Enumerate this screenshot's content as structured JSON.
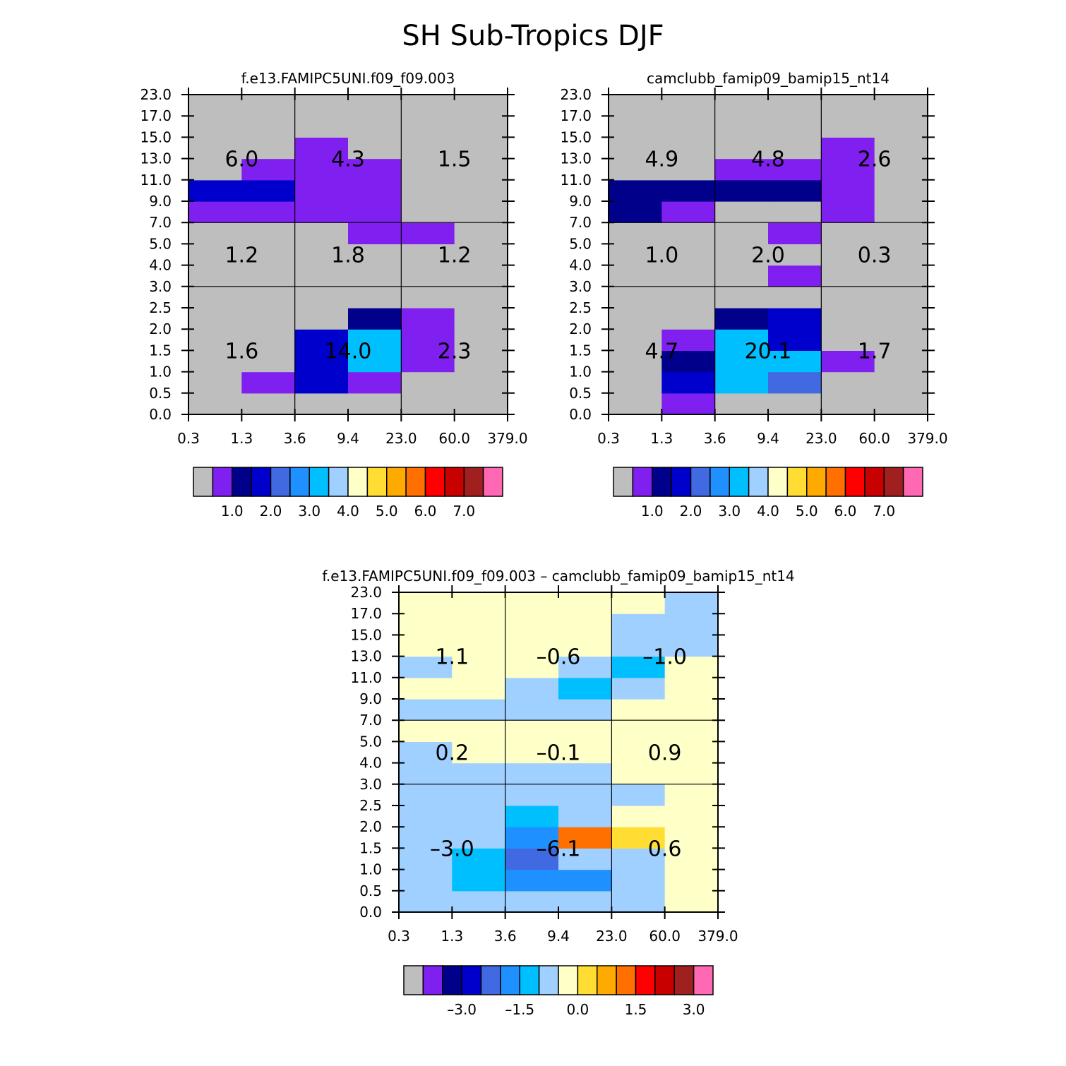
{
  "title": "SH Sub-Tropics DJF",
  "colors": {
    "palette": [
      "#bebebe",
      "#8020f0",
      "#00008b",
      "#0000cd",
      "#4169e1",
      "#1e90ff",
      "#00bfff",
      "#a0d0ff",
      "#ffffc8",
      "#ffdd33",
      "#ffaa00",
      "#ff7000",
      "#ff0000",
      "#c80000",
      "#a02020",
      "#ff69b4"
    ]
  },
  "chart_data": [
    {
      "type": "heatmap",
      "title": "f.e13.FAMIPC5UNI.f09_f09.003",
      "x_ticks": [
        "0.3",
        "1.3",
        "3.6",
        "9.4",
        "23.0",
        "60.0",
        "379.0"
      ],
      "y_ticks": [
        "0.0",
        "0.5",
        "1.0",
        "1.5",
        "2.0",
        "2.5",
        "3.0",
        "4.0",
        "5.0",
        "7.0",
        "9.0",
        "11.0",
        "13.0",
        "15.0",
        "17.0",
        "23.0"
      ],
      "x_label": "",
      "y_label": "",
      "cells_note": "grid[row][col]: row 0 = y bin 0.0-0.5, col 0 = x bin 0.3-1.3; values are palette indices",
      "grid": [
        [
          0,
          0,
          0,
          0,
          0,
          0
        ],
        [
          0,
          1,
          3,
          1,
          0,
          0
        ],
        [
          0,
          0,
          3,
          6,
          1,
          0
        ],
        [
          0,
          0,
          3,
          6,
          1,
          0
        ],
        [
          0,
          0,
          0,
          2,
          1,
          0
        ],
        [
          0,
          0,
          0,
          0,
          0,
          0
        ],
        [
          0,
          0,
          0,
          0,
          0,
          0
        ],
        [
          0,
          0,
          0,
          0,
          0,
          0
        ],
        [
          0,
          0,
          0,
          1,
          1,
          0
        ],
        [
          1,
          1,
          1,
          1,
          0,
          0
        ],
        [
          3,
          3,
          1,
          1,
          0,
          0
        ],
        [
          0,
          1,
          1,
          1,
          0,
          0
        ],
        [
          0,
          0,
          1,
          0,
          0,
          0
        ],
        [
          0,
          0,
          0,
          0,
          0,
          0
        ],
        [
          0,
          0,
          0,
          0,
          0,
          0
        ]
      ],
      "region_labels": [
        {
          "col": 0,
          "row": 2,
          "text": "6.0"
        },
        {
          "col": 1,
          "row": 2,
          "text": "4.3"
        },
        {
          "col": 2,
          "row": 2,
          "text": "1.5"
        },
        {
          "col": 0,
          "row": 1,
          "text": "1.2"
        },
        {
          "col": 1,
          "row": 1,
          "text": "1.8"
        },
        {
          "col": 2,
          "row": 1,
          "text": "1.2"
        },
        {
          "col": 0,
          "row": 0,
          "text": "1.6"
        },
        {
          "col": 1,
          "row": 0,
          "text": "14.0"
        },
        {
          "col": 2,
          "row": 0,
          "text": "2.3"
        }
      ],
      "colorbar": {
        "colors": [
          0,
          1,
          2,
          3,
          4,
          5,
          6,
          7,
          8,
          9,
          10,
          11,
          12,
          13,
          14,
          15
        ],
        "labels": [
          {
            "after_box": 1,
            "text": "1.0"
          },
          {
            "after_box": 3,
            "text": "2.0"
          },
          {
            "after_box": 5,
            "text": "3.0"
          },
          {
            "after_box": 7,
            "text": "4.0"
          },
          {
            "after_box": 9,
            "text": "5.0"
          },
          {
            "after_box": 11,
            "text": "6.0"
          },
          {
            "after_box": 13,
            "text": "7.0"
          }
        ]
      }
    },
    {
      "type": "heatmap",
      "title": "camclubb_famip09_bamip15_nt14",
      "x_ticks": [
        "0.3",
        "1.3",
        "3.6",
        "9.4",
        "23.0",
        "60.0",
        "379.0"
      ],
      "y_ticks": [
        "0.0",
        "0.5",
        "1.0",
        "1.5",
        "2.0",
        "2.5",
        "3.0",
        "4.0",
        "5.0",
        "7.0",
        "9.0",
        "11.0",
        "13.0",
        "15.0",
        "17.0",
        "23.0"
      ],
      "x_label": "",
      "y_label": "",
      "grid": [
        [
          0,
          1,
          0,
          0,
          0,
          0
        ],
        [
          0,
          3,
          6,
          4,
          0,
          0
        ],
        [
          0,
          2,
          6,
          6,
          1,
          0
        ],
        [
          0,
          1,
          6,
          3,
          0,
          0
        ],
        [
          0,
          0,
          2,
          3,
          0,
          0
        ],
        [
          0,
          0,
          0,
          0,
          0,
          0
        ],
        [
          0,
          0,
          0,
          1,
          0,
          0
        ],
        [
          0,
          0,
          0,
          0,
          0,
          0
        ],
        [
          0,
          0,
          0,
          1,
          0,
          0
        ],
        [
          2,
          1,
          0,
          0,
          1,
          0
        ],
        [
          2,
          2,
          2,
          2,
          1,
          0
        ],
        [
          0,
          0,
          1,
          1,
          1,
          0
        ],
        [
          0,
          0,
          0,
          0,
          1,
          0
        ],
        [
          0,
          0,
          0,
          0,
          0,
          0
        ],
        [
          0,
          0,
          0,
          0,
          0,
          0
        ]
      ],
      "region_labels": [
        {
          "col": 0,
          "row": 2,
          "text": "4.9"
        },
        {
          "col": 1,
          "row": 2,
          "text": "4.8"
        },
        {
          "col": 2,
          "row": 2,
          "text": "2.6"
        },
        {
          "col": 0,
          "row": 1,
          "text": "1.0"
        },
        {
          "col": 1,
          "row": 1,
          "text": "2.0"
        },
        {
          "col": 2,
          "row": 1,
          "text": "0.3"
        },
        {
          "col": 0,
          "row": 0,
          "text": "4.7"
        },
        {
          "col": 1,
          "row": 0,
          "text": "20.1"
        },
        {
          "col": 2,
          "row": 0,
          "text": "1.7"
        }
      ],
      "colorbar": {
        "colors": [
          0,
          1,
          2,
          3,
          4,
          5,
          6,
          7,
          8,
          9,
          10,
          11,
          12,
          13,
          14,
          15
        ],
        "labels": [
          {
            "after_box": 1,
            "text": "1.0"
          },
          {
            "after_box": 3,
            "text": "2.0"
          },
          {
            "after_box": 5,
            "text": "3.0"
          },
          {
            "after_box": 7,
            "text": "4.0"
          },
          {
            "after_box": 9,
            "text": "5.0"
          },
          {
            "after_box": 11,
            "text": "6.0"
          },
          {
            "after_box": 13,
            "text": "7.0"
          }
        ]
      }
    },
    {
      "type": "heatmap",
      "title": "f.e13.FAMIPC5UNI.f09_f09.003 – camclubb_famip09_bamip15_nt14",
      "x_ticks": [
        "0.3",
        "1.3",
        "3.6",
        "9.4",
        "23.0",
        "60.0",
        "379.0"
      ],
      "y_ticks": [
        "0.0",
        "0.5",
        "1.0",
        "1.5",
        "2.0",
        "2.5",
        "3.0",
        "4.0",
        "5.0",
        "7.0",
        "9.0",
        "11.0",
        "13.0",
        "15.0",
        "17.0",
        "23.0"
      ],
      "x_label": "",
      "y_label": "",
      "grid": [
        [
          7,
          7,
          7,
          7,
          7,
          8
        ],
        [
          7,
          6,
          5,
          5,
          7,
          8
        ],
        [
          7,
          6,
          4,
          7,
          7,
          8
        ],
        [
          7,
          7,
          5,
          11,
          9,
          8
        ],
        [
          7,
          7,
          6,
          7,
          8,
          8
        ],
        [
          7,
          7,
          7,
          7,
          7,
          8
        ],
        [
          7,
          7,
          7,
          7,
          8,
          8
        ],
        [
          7,
          8,
          8,
          8,
          8,
          8
        ],
        [
          8,
          8,
          8,
          8,
          8,
          8
        ],
        [
          7,
          7,
          7,
          7,
          8,
          8
        ],
        [
          8,
          8,
          7,
          6,
          7,
          8
        ],
        [
          7,
          8,
          8,
          7,
          6,
          8
        ],
        [
          8,
          8,
          8,
          8,
          7,
          7
        ],
        [
          8,
          8,
          8,
          8,
          7,
          7
        ],
        [
          8,
          8,
          8,
          8,
          8,
          7
        ]
      ],
      "region_labels": [
        {
          "col": 0,
          "row": 2,
          "text": "1.1"
        },
        {
          "col": 1,
          "row": 2,
          "text": "–0.6"
        },
        {
          "col": 2,
          "row": 2,
          "text": "–1.0"
        },
        {
          "col": 0,
          "row": 1,
          "text": "0.2"
        },
        {
          "col": 1,
          "row": 1,
          "text": "–0.1"
        },
        {
          "col": 2,
          "row": 1,
          "text": "0.9"
        },
        {
          "col": 0,
          "row": 0,
          "text": "–3.0"
        },
        {
          "col": 1,
          "row": 0,
          "text": "–6.1"
        },
        {
          "col": 2,
          "row": 0,
          "text": "0.6"
        }
      ],
      "colorbar": {
        "colors": [
          0,
          1,
          2,
          3,
          4,
          5,
          6,
          7,
          8,
          9,
          10,
          11,
          12,
          13,
          14,
          15
        ],
        "labels": [
          {
            "after_box": 2,
            "text": "–3.0"
          },
          {
            "after_box": 5,
            "text": "–1.5"
          },
          {
            "after_box": 8,
            "text": "0.0"
          },
          {
            "after_box": 11,
            "text": "1.5"
          },
          {
            "after_box": 14,
            "text": "3.0"
          }
        ]
      }
    }
  ]
}
